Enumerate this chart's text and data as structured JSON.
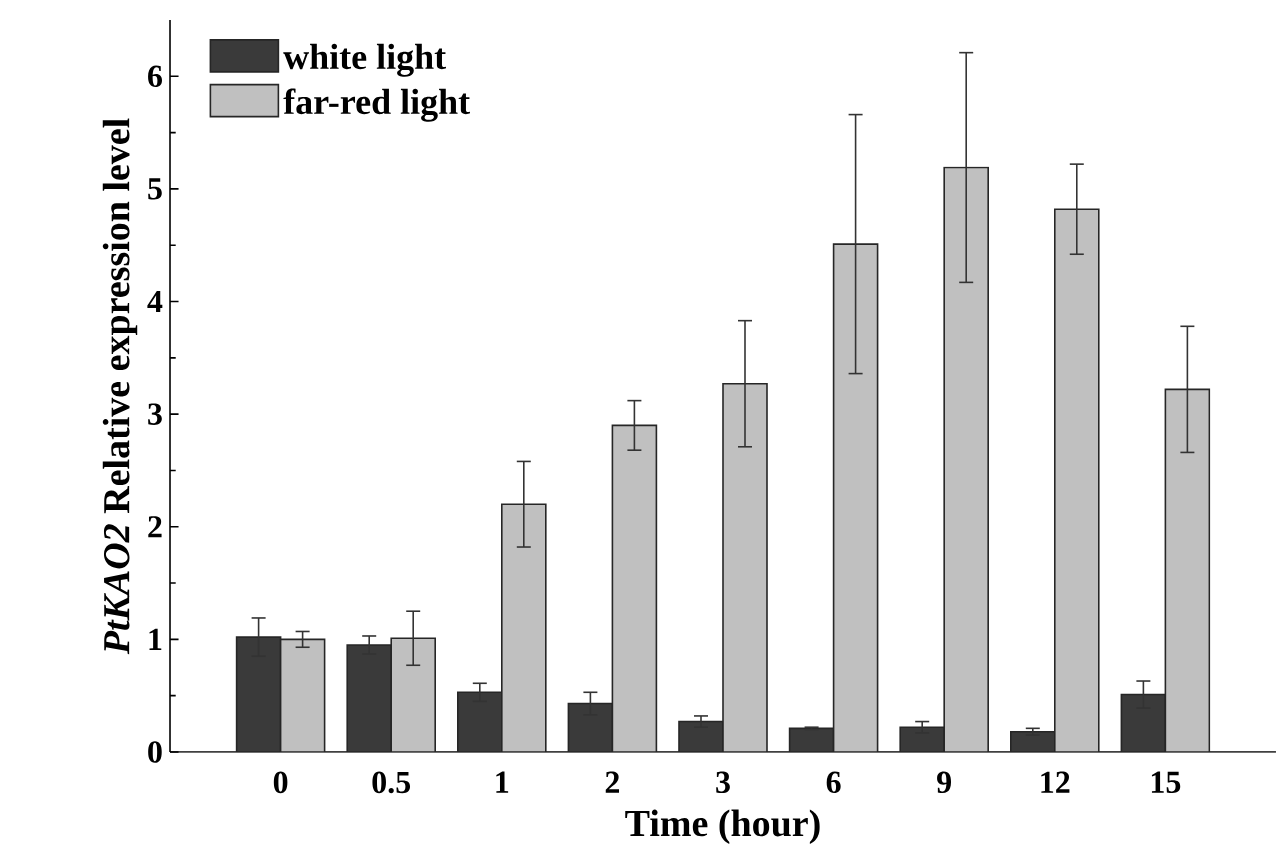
{
  "chart_data": {
    "type": "bar",
    "xlabel": "Time (hour)",
    "ylabel": "*PtKAO2* Relative expression level",
    "categories": [
      "0",
      "0.5",
      "1",
      "2",
      "3",
      "6",
      "9",
      "12",
      "15"
    ],
    "series": [
      {
        "name": "white light",
        "color": "#3a3a3a",
        "values": [
          1.02,
          0.95,
          0.53,
          0.43,
          0.27,
          0.21,
          0.22,
          0.18,
          0.51
        ],
        "errors": [
          0.17,
          0.08,
          0.08,
          0.1,
          0.05,
          0.01,
          0.05,
          0.03,
          0.12
        ]
      },
      {
        "name": "far-red light",
        "color": "#c0c0c0",
        "values": [
          1.0,
          1.01,
          2.2,
          2.9,
          3.27,
          4.51,
          5.19,
          4.82,
          3.22
        ],
        "errors": [
          0.07,
          0.24,
          0.38,
          0.22,
          0.56,
          1.15,
          1.02,
          0.4,
          0.56
        ]
      }
    ],
    "ylim": [
      0,
      6.5
    ],
    "yticks": [
      0,
      1,
      2,
      3,
      4,
      5,
      6
    ],
    "grid": false,
    "legend": "top left"
  }
}
